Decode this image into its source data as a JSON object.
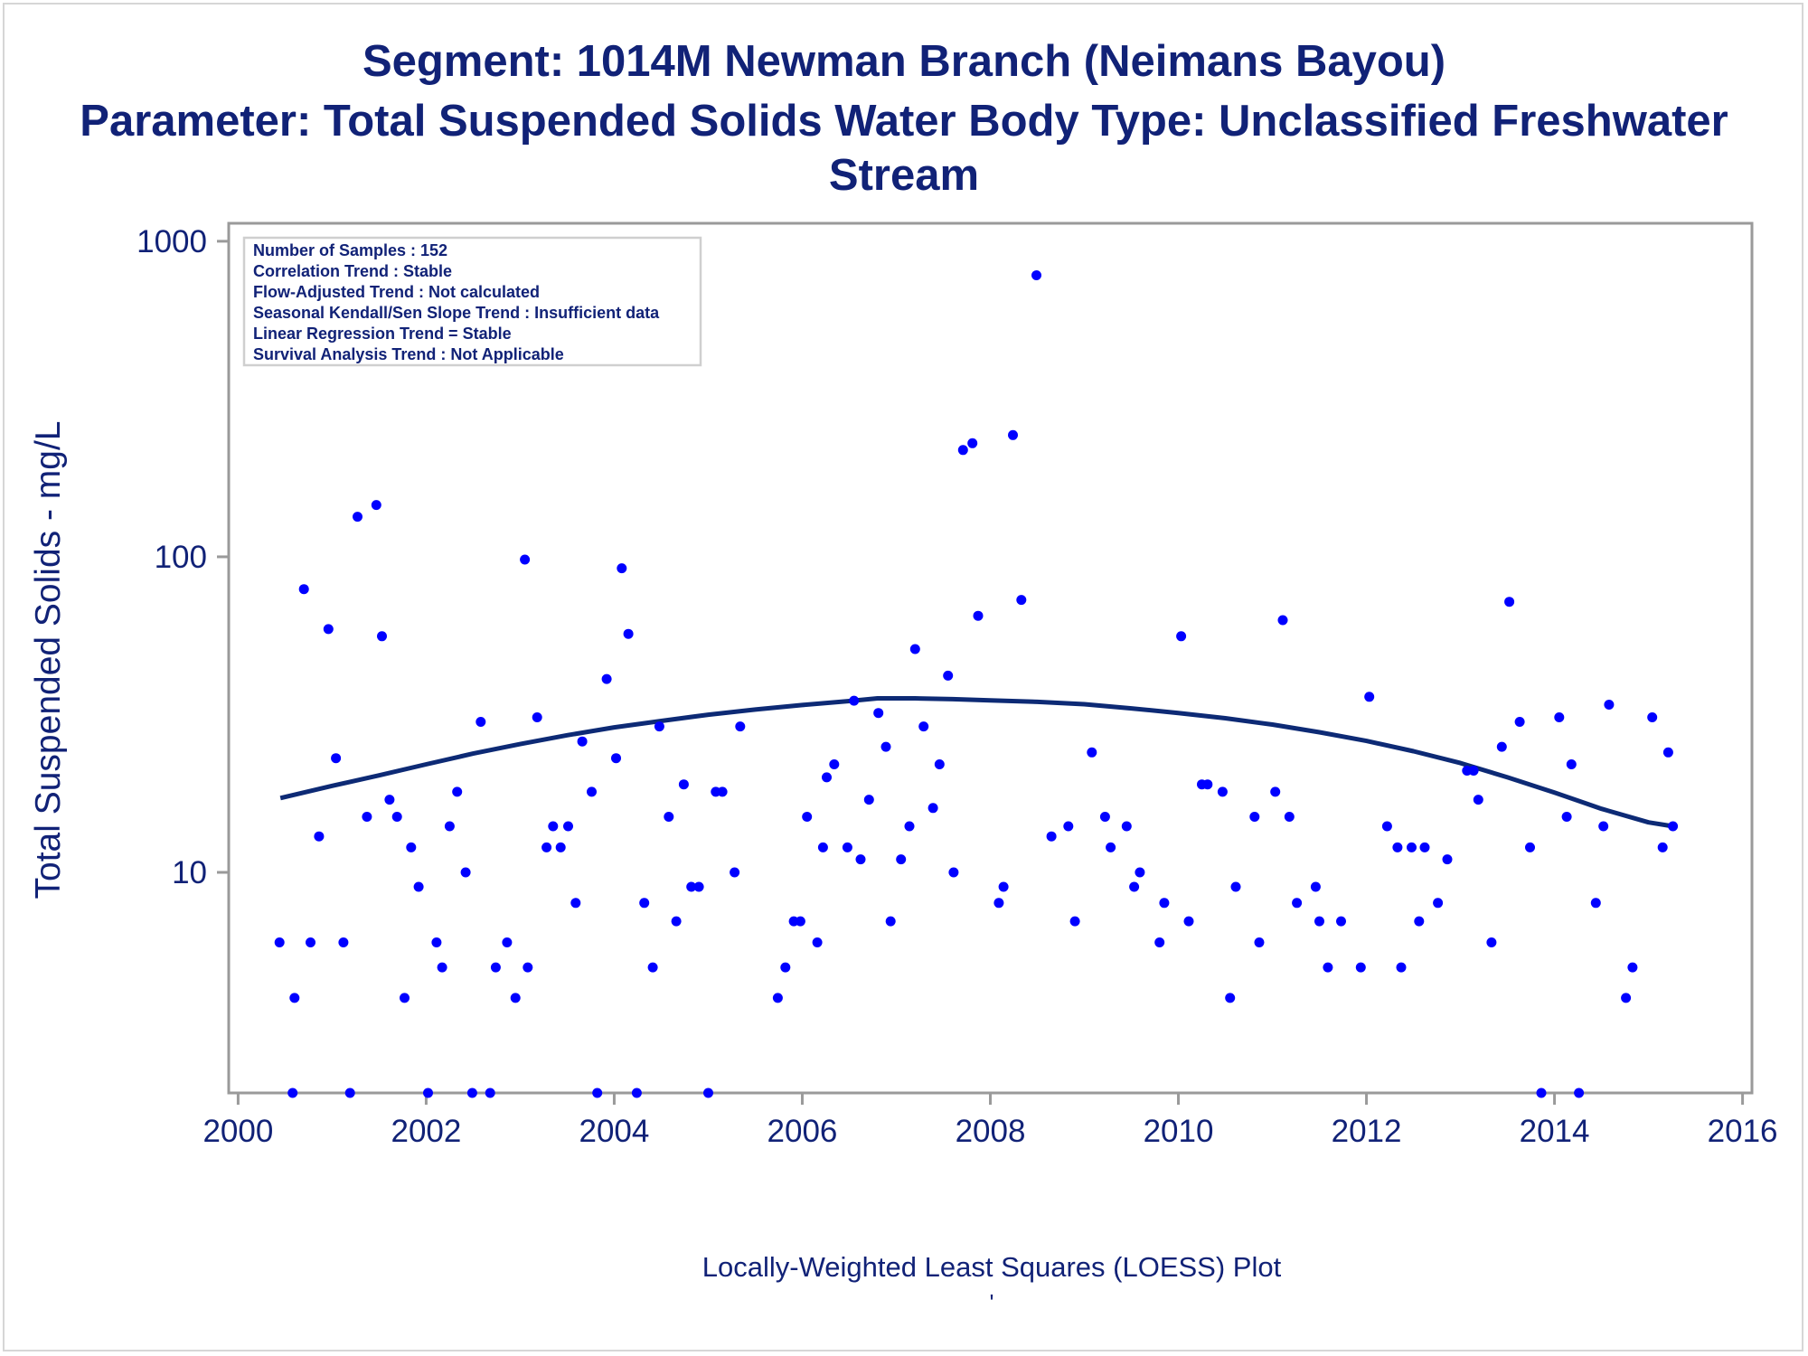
{
  "titles": {
    "line1": "Segment: 1014M  Newman Branch (Neimans Bayou)",
    "line2": "Parameter: Total Suspended Solids   Water Body Type: Unclassified Freshwater",
    "line3": "Stream"
  },
  "footnote": "Locally-Weighted Least Squares (LOESS) Plot",
  "footnote_mark": "'",
  "colors": {
    "text": "#112277",
    "points": "#0000ff",
    "curve": "#0d2a75",
    "frame": "#9a9a9a"
  },
  "chart_data": {
    "type": "scatter",
    "ylabel": "Total Suspended Solids - mg/L",
    "xlabel": "",
    "x_ticks": [
      2000,
      2002,
      2004,
      2006,
      2008,
      2010,
      2012,
      2014,
      2016
    ],
    "y_ticks": [
      10,
      100,
      1000
    ],
    "y_scale": "log",
    "xlim": [
      1999.9,
      2016.1
    ],
    "ylim": [
      2,
      1140
    ],
    "grid": false,
    "stats_box": {
      "placement": "top-left",
      "lines": [
        "Number of Samples : 152",
        "Correlation Trend : Stable",
        "Flow-Adjusted Trend : Not calculated",
        "Seasonal Kendall/Sen Slope Trend : Insufficient data",
        "Linear Regression Trend = Stable",
        "Survival Analysis Trend : Not Applicable"
      ]
    },
    "points": [
      [
        2000.44,
        6
      ],
      [
        2000.58,
        2
      ],
      [
        2000.6,
        4
      ],
      [
        2000.7,
        79
      ],
      [
        2000.77,
        6
      ],
      [
        2000.86,
        13
      ],
      [
        2000.96,
        59
      ],
      [
        2001.04,
        23
      ],
      [
        2001.12,
        6
      ],
      [
        2001.19,
        2
      ],
      [
        2001.27,
        134
      ],
      [
        2001.37,
        15
      ],
      [
        2001.47,
        146
      ],
      [
        2001.53,
        56
      ],
      [
        2001.61,
        17
      ],
      [
        2001.69,
        15
      ],
      [
        2001.77,
        4
      ],
      [
        2001.84,
        12
      ],
      [
        2001.92,
        9
      ],
      [
        2002.02,
        2
      ],
      [
        2002.11,
        6
      ],
      [
        2002.17,
        5
      ],
      [
        2002.25,
        14
      ],
      [
        2002.33,
        18
      ],
      [
        2002.42,
        10
      ],
      [
        2002.49,
        2
      ],
      [
        2002.58,
        30
      ],
      [
        2002.68,
        2
      ],
      [
        2002.74,
        5
      ],
      [
        2002.86,
        6
      ],
      [
        2002.95,
        4
      ],
      [
        2003.05,
        98
      ],
      [
        2003.08,
        5
      ],
      [
        2003.18,
        31
      ],
      [
        2003.28,
        12
      ],
      [
        2003.35,
        14
      ],
      [
        2003.43,
        12
      ],
      [
        2003.51,
        14
      ],
      [
        2003.59,
        8
      ],
      [
        2003.66,
        26
      ],
      [
        2003.76,
        18
      ],
      [
        2003.82,
        2
      ],
      [
        2003.92,
        41
      ],
      [
        2004.02,
        23
      ],
      [
        2004.08,
        92
      ],
      [
        2004.15,
        57
      ],
      [
        2004.24,
        2
      ],
      [
        2004.32,
        8
      ],
      [
        2004.41,
        5
      ],
      [
        2004.48,
        29
      ],
      [
        2004.58,
        15
      ],
      [
        2004.66,
        7
      ],
      [
        2004.74,
        19
      ],
      [
        2004.82,
        9
      ],
      [
        2004.9,
        9
      ],
      [
        2005.0,
        2
      ],
      [
        2005.08,
        18
      ],
      [
        2005.15,
        18
      ],
      [
        2005.28,
        10
      ],
      [
        2005.34,
        29
      ],
      [
        2005.74,
        4
      ],
      [
        2005.82,
        5
      ],
      [
        2005.91,
        7
      ],
      [
        2005.98,
        7
      ],
      [
        2006.05,
        15
      ],
      [
        2006.16,
        6
      ],
      [
        2006.22,
        12
      ],
      [
        2006.26,
        20
      ],
      [
        2006.34,
        22
      ],
      [
        2006.48,
        12
      ],
      [
        2006.55,
        35
      ],
      [
        2006.62,
        11
      ],
      [
        2006.71,
        17
      ],
      [
        2006.81,
        32
      ],
      [
        2006.89,
        25
      ],
      [
        2006.94,
        7
      ],
      [
        2007.05,
        11
      ],
      [
        2007.14,
        14
      ],
      [
        2007.2,
        51
      ],
      [
        2007.29,
        29
      ],
      [
        2007.39,
        16
      ],
      [
        2007.46,
        22
      ],
      [
        2007.55,
        42
      ],
      [
        2007.61,
        10
      ],
      [
        2007.71,
        218
      ],
      [
        2007.81,
        229
      ],
      [
        2007.87,
        65
      ],
      [
        2008.09,
        8
      ],
      [
        2008.14,
        9
      ],
      [
        2008.24,
        243
      ],
      [
        2008.33,
        73
      ],
      [
        2008.49,
        780
      ],
      [
        2008.65,
        13
      ],
      [
        2008.83,
        14
      ],
      [
        2008.9,
        7
      ],
      [
        2009.08,
        24
      ],
      [
        2009.22,
        15
      ],
      [
        2009.28,
        12
      ],
      [
        2009.45,
        14
      ],
      [
        2009.53,
        9
      ],
      [
        2009.59,
        10
      ],
      [
        2009.8,
        6
      ],
      [
        2009.85,
        8
      ],
      [
        2010.03,
        56
      ],
      [
        2010.11,
        7
      ],
      [
        2010.25,
        19
      ],
      [
        2010.31,
        19
      ],
      [
        2010.47,
        18
      ],
      [
        2010.55,
        4
      ],
      [
        2010.61,
        9
      ],
      [
        2010.81,
        15
      ],
      [
        2010.86,
        6
      ],
      [
        2011.03,
        18
      ],
      [
        2011.11,
        63
      ],
      [
        2011.18,
        15
      ],
      [
        2011.26,
        8
      ],
      [
        2011.46,
        9
      ],
      [
        2011.5,
        7
      ],
      [
        2011.59,
        5
      ],
      [
        2011.73,
        7
      ],
      [
        2011.94,
        5
      ],
      [
        2012.03,
        36
      ],
      [
        2012.22,
        14
      ],
      [
        2012.33,
        12
      ],
      [
        2012.37,
        5
      ],
      [
        2012.48,
        12
      ],
      [
        2012.56,
        7
      ],
      [
        2012.62,
        12
      ],
      [
        2012.76,
        8
      ],
      [
        2012.86,
        11
      ],
      [
        2013.07,
        21
      ],
      [
        2013.14,
        21
      ],
      [
        2013.19,
        17
      ],
      [
        2013.33,
        6
      ],
      [
        2013.44,
        25
      ],
      [
        2013.52,
        72
      ],
      [
        2013.63,
        30
      ],
      [
        2013.74,
        12
      ],
      [
        2013.86,
        2
      ],
      [
        2014.05,
        31
      ],
      [
        2014.13,
        15
      ],
      [
        2014.18,
        22
      ],
      [
        2014.26,
        2
      ],
      [
        2014.44,
        8
      ],
      [
        2014.52,
        14
      ],
      [
        2014.58,
        34
      ],
      [
        2014.76,
        4
      ],
      [
        2014.83,
        5
      ],
      [
        2015.04,
        31
      ],
      [
        2015.15,
        12
      ],
      [
        2015.21,
        24
      ],
      [
        2015.26,
        14
      ]
    ],
    "loess_curve": [
      [
        2000.45,
        17.2
      ],
      [
        2001.0,
        18.8
      ],
      [
        2001.5,
        20.3
      ],
      [
        2002.0,
        22.0
      ],
      [
        2002.5,
        23.8
      ],
      [
        2003.0,
        25.5
      ],
      [
        2003.5,
        27.2
      ],
      [
        2004.0,
        28.8
      ],
      [
        2004.5,
        30.2
      ],
      [
        2005.0,
        31.6
      ],
      [
        2005.5,
        32.8
      ],
      [
        2006.0,
        33.9
      ],
      [
        2006.5,
        34.9
      ],
      [
        2006.8,
        35.6
      ],
      [
        2007.2,
        35.6
      ],
      [
        2007.6,
        35.4
      ],
      [
        2008.0,
        35.1
      ],
      [
        2008.5,
        34.7
      ],
      [
        2009.0,
        34.1
      ],
      [
        2009.5,
        33.1
      ],
      [
        2010.0,
        32.0
      ],
      [
        2010.5,
        30.8
      ],
      [
        2011.0,
        29.4
      ],
      [
        2011.5,
        27.8
      ],
      [
        2012.0,
        26.1
      ],
      [
        2012.5,
        24.2
      ],
      [
        2013.0,
        22.2
      ],
      [
        2013.5,
        20.0
      ],
      [
        2014.0,
        17.9
      ],
      [
        2014.5,
        15.9
      ],
      [
        2015.0,
        14.4
      ],
      [
        2015.26,
        14.0
      ]
    ]
  }
}
